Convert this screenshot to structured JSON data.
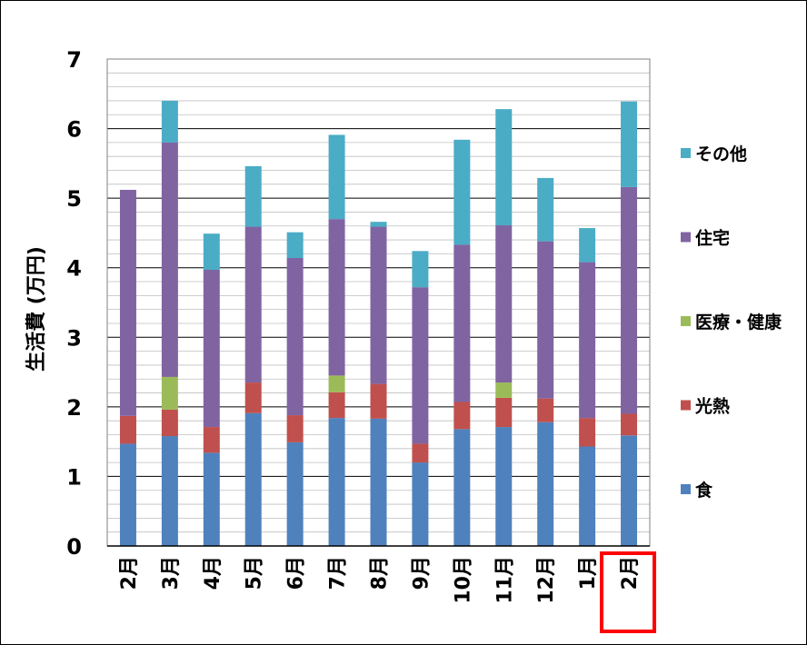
{
  "chart_data": {
    "type": "bar",
    "stacked": true,
    "ylabel": "生活費 (万円)",
    "ylim": [
      0,
      7
    ],
    "yticks": [
      "0",
      "1",
      "2",
      "3",
      "4",
      "5",
      "6",
      "7"
    ],
    "grid": true,
    "legend_position": "right",
    "categories": [
      "2月",
      "3月",
      "4月",
      "5月",
      "6月",
      "7月",
      "8月",
      "9月",
      "10月",
      "11月",
      "12月",
      "1月",
      "2月"
    ],
    "highlighted_category_index": 12,
    "highlight_color": "#ff0000",
    "series": [
      {
        "name": "食",
        "color": "#4f81bd",
        "values": [
          1.47,
          1.58,
          1.34,
          1.91,
          1.49,
          1.84,
          1.83,
          1.2,
          1.68,
          1.71,
          1.78,
          1.43,
          1.59
        ]
      },
      {
        "name": "光熱",
        "color": "#c0504d",
        "values": [
          0.4,
          0.38,
          0.37,
          0.44,
          0.39,
          0.37,
          0.5,
          0.27,
          0.39,
          0.42,
          0.34,
          0.41,
          0.31
        ]
      },
      {
        "name": "医療・健康",
        "color": "#9bbb59",
        "values": [
          0,
          0.47,
          0,
          0,
          0,
          0.24,
          0,
          0,
          0,
          0.22,
          0,
          0,
          0
        ]
      },
      {
        "name": "住宅",
        "color": "#8064a2",
        "values": [
          3.25,
          3.37,
          2.26,
          2.24,
          2.26,
          2.25,
          2.26,
          2.25,
          2.26,
          2.26,
          2.26,
          2.24,
          3.26
        ]
      },
      {
        "name": "その他",
        "color": "#4bacc6",
        "values": [
          0,
          0.6,
          0.52,
          0.87,
          0.37,
          1.21,
          0.07,
          0.52,
          1.51,
          1.67,
          0.91,
          0.49,
          1.23
        ]
      }
    ]
  }
}
